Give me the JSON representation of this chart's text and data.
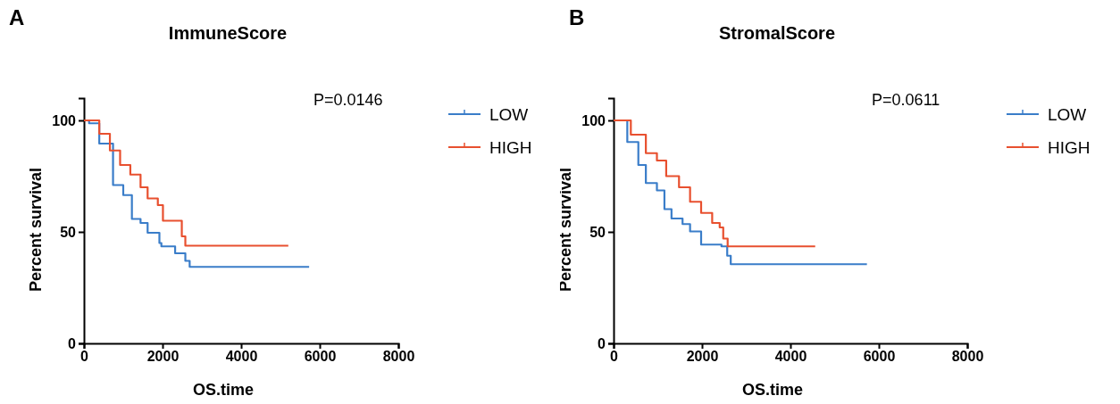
{
  "chart_data": [
    {
      "type": "step",
      "title": "ImmuneScore",
      "xlabel": "OS.time",
      "ylabel": "Percent survival",
      "annotations": [
        "A",
        "P=0.0146"
      ],
      "xlim": [
        0,
        8000
      ],
      "xticks": [
        0,
        2000,
        4000,
        6000,
        8000
      ],
      "ylim": [
        0,
        110
      ],
      "yticks": [
        0,
        50,
        100
      ],
      "legend": "right",
      "grid": false,
      "series": [
        {
          "name": "LOW",
          "color": "#3a7dc9",
          "x": [
            0,
            130,
            390,
            740,
            1000,
            1220,
            1440,
            1620,
            1920,
            1970,
            2320,
            2580,
            2690,
            5730
          ],
          "values": [
            100,
            98.7,
            89.6,
            71,
            66.5,
            55.8,
            54,
            49.6,
            45,
            43.5,
            40.4,
            37,
            34.3,
            34.3
          ]
        },
        {
          "name": "HIGH",
          "color": "#e8502f",
          "x": [
            0,
            390,
            660,
            920,
            1180,
            1440,
            1620,
            1880,
            2010,
            2450,
            2490,
            2580,
            5200
          ],
          "values": [
            100,
            94,
            86.5,
            80,
            75.7,
            70,
            65,
            62,
            55,
            55,
            48,
            43.8,
            43.8
          ]
        }
      ]
    },
    {
      "type": "step",
      "title": "StromalScore",
      "xlabel": "OS.time",
      "ylabel": "Percent survival",
      "annotations": [
        "B",
        "P=0.0611"
      ],
      "xlim": [
        0,
        8000
      ],
      "xticks": [
        0,
        2000,
        4000,
        6000,
        8000
      ],
      "ylim": [
        0,
        110
      ],
      "yticks": [
        0,
        50,
        100
      ],
      "legend": "right",
      "grid": false,
      "series": [
        {
          "name": "LOW",
          "color": "#3a7dc9",
          "x": [
            0,
            310,
            560,
            730,
            980,
            1150,
            1310,
            1560,
            1730,
            1980,
            2440,
            2570,
            2650,
            5730
          ],
          "values": [
            100,
            90.3,
            80,
            71.9,
            68.6,
            60.2,
            56,
            53.5,
            50.2,
            44.3,
            43.5,
            39.3,
            35.5,
            35.5
          ]
        },
        {
          "name": "HIGH",
          "color": "#e8502f",
          "x": [
            0,
            390,
            730,
            980,
            1190,
            1480,
            1730,
            1980,
            2230,
            2400,
            2480,
            2580,
            4560
          ],
          "values": [
            100,
            93.6,
            85.3,
            82,
            75,
            70,
            63.5,
            58.5,
            54,
            52,
            47,
            43.5,
            43.5
          ]
        }
      ]
    }
  ]
}
